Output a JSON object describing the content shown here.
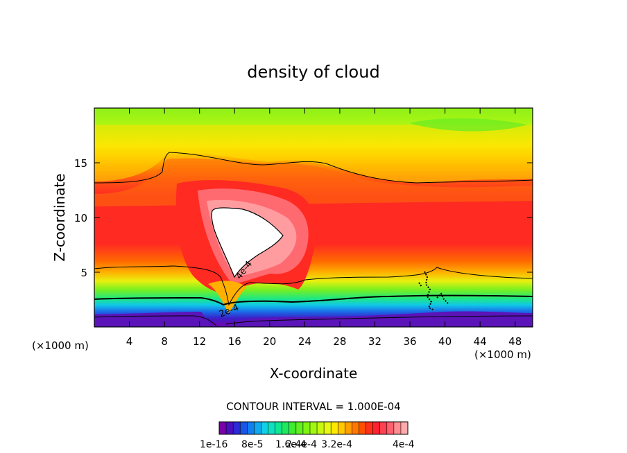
{
  "chart_data": {
    "type": "heatmap",
    "title": "density of cloud",
    "xlabel": "X-coordinate",
    "ylabel": "Z-coordinate",
    "x_unit": "(×1000 m)",
    "x_unit_right": "(×1000 m)",
    "xlim": [
      0,
      50
    ],
    "ylim": [
      0,
      20
    ],
    "x_ticks": [
      "4",
      "8",
      "12",
      "16",
      "20",
      "24",
      "28",
      "32",
      "36",
      "40",
      "44",
      "48"
    ],
    "y_ticks": [
      "5",
      "10",
      "15"
    ],
    "contour_interval_label": "CONTOUR INTERVAL = 1.000E-04",
    "contour_labels": [
      "4e-4",
      "2e-4"
    ],
    "colorbar": {
      "labels": [
        "1e-16",
        "8e-5",
        "1.6e-4",
        "2.4e-4",
        "3.2e-4",
        "4e-4"
      ],
      "colors": [
        "#7a00a8",
        "#4a10c0",
        "#2a2ad8",
        "#1a55e8",
        "#1080f0",
        "#10a8f0",
        "#10d0e8",
        "#10e0c0",
        "#10e890",
        "#20e860",
        "#40ec30",
        "#60f020",
        "#80f410",
        "#a0f810",
        "#c8f810",
        "#e8f810",
        "#ffe800",
        "#ffc800",
        "#ffa000",
        "#ff7800",
        "#ff5000",
        "#ff3018",
        "#ff2030",
        "#ff4050",
        "#ff6070",
        "#ff8c90",
        "#ffaaaa"
      ]
    }
  }
}
